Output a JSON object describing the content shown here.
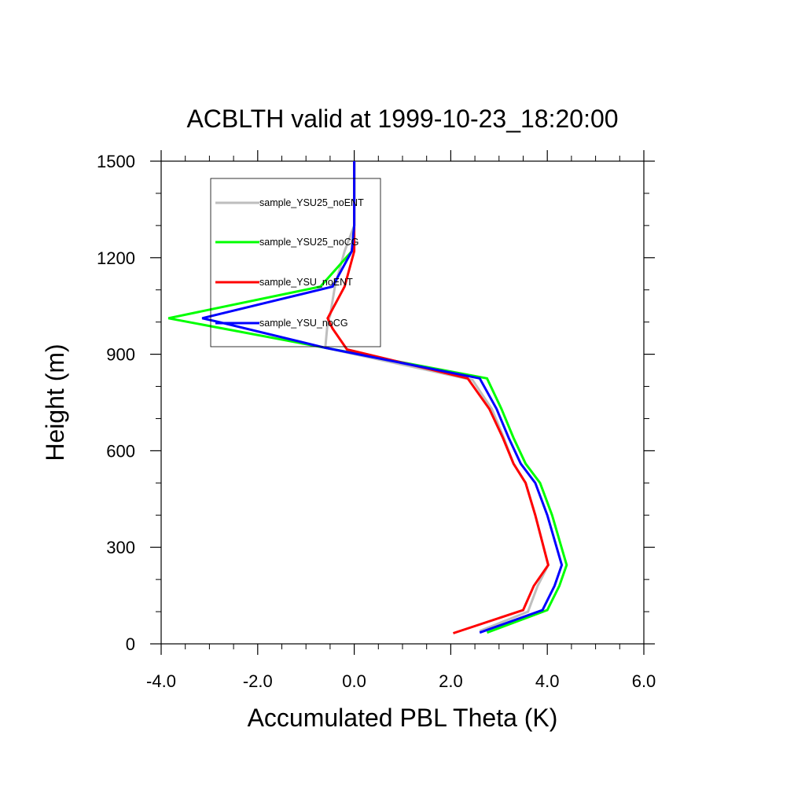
{
  "chart_data": {
    "type": "line",
    "title": "ACBLTH valid at 1999-10-23_18:20:00",
    "xlabel": "Accumulated PBL Theta (K)",
    "ylabel": "Height (m)",
    "xlim": [
      -4.0,
      6.0
    ],
    "ylim": [
      0,
      1500
    ],
    "xticks": [
      -4.0,
      -2.0,
      0.0,
      2.0,
      4.0,
      6.0
    ],
    "xtick_labels": [
      "-4.0",
      "-2.0",
      "0.0",
      "2.0",
      "4.0",
      "6.0"
    ],
    "yticks": [
      0,
      300,
      600,
      900,
      1200,
      1500
    ],
    "ytick_labels": [
      "0",
      "300",
      "600",
      "900",
      "1200",
      "1500"
    ],
    "grid": false,
    "legend_position": "top-left",
    "series": [
      {
        "name": "sample_YSU25_noENT",
        "color": "#bebebe",
        "x": [
          2.6,
          3.6,
          3.8,
          4.02,
          3.75,
          3.55,
          3.3,
          3.1,
          2.85,
          2.45,
          -0.6,
          -0.55,
          -0.5,
          -0.4,
          -0.2,
          0.0,
          0.0,
          0.0,
          0.0
        ],
        "y": [
          40,
          100,
          180,
          245,
          400,
          500,
          560,
          640,
          730,
          820,
          920,
          1000,
          1020,
          1110,
          1220,
          1300,
          1400,
          1460,
          1500
        ]
      },
      {
        "name": "sample_YSU25_noCG",
        "color": "#00ff00",
        "x": [
          2.75,
          4.0,
          4.25,
          4.4,
          4.1,
          3.85,
          3.55,
          3.3,
          3.05,
          2.75,
          -0.6,
          -3.85,
          -0.7,
          -0.05,
          0.0,
          0.0
        ],
        "y": [
          35,
          105,
          180,
          245,
          400,
          500,
          560,
          640,
          730,
          825,
          920,
          1012,
          1110,
          1220,
          1300,
          1500
        ]
      },
      {
        "name": "sample_YSU_noENT",
        "color": "#ff0000",
        "x": [
          2.05,
          3.5,
          3.72,
          4.02,
          3.75,
          3.55,
          3.3,
          3.08,
          2.8,
          2.35,
          -0.15,
          -0.45,
          -0.55,
          -0.2,
          0.0,
          0.0,
          0.0
        ],
        "y": [
          33,
          105,
          180,
          245,
          400,
          500,
          560,
          640,
          730,
          825,
          915,
          980,
          1012,
          1110,
          1220,
          1300,
          1500
        ]
      },
      {
        "name": "sample_YSU_noCG",
        "color": "#0000ff",
        "x": [
          2.6,
          3.9,
          4.15,
          4.3,
          4.0,
          3.75,
          3.45,
          3.2,
          2.95,
          2.6,
          -0.6,
          -2.8,
          -3.15,
          -0.45,
          -0.05,
          0.0,
          0.0
        ],
        "y": [
          35,
          105,
          180,
          245,
          400,
          500,
          560,
          640,
          730,
          825,
          920,
          1000,
          1012,
          1110,
          1220,
          1300,
          1500
        ]
      }
    ]
  }
}
